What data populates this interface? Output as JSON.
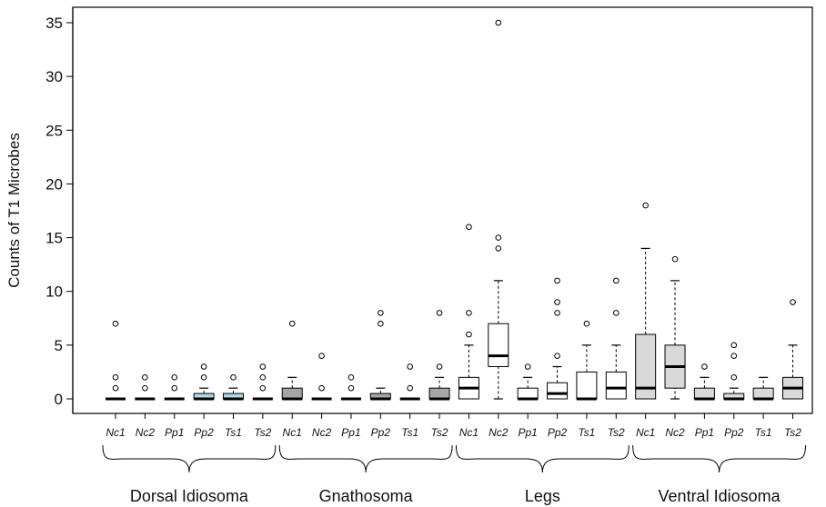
{
  "chart_data": {
    "type": "boxplot",
    "ylabel": "Counts of T1 Microbes",
    "ylim": [
      0,
      35
    ],
    "yticks": [
      0,
      5,
      10,
      15,
      20,
      25,
      30,
      35
    ],
    "ytick_labels": [
      "0",
      "5",
      "10",
      "15",
      "20",
      "25",
      "30",
      "35"
    ],
    "grid": false,
    "groups": [
      {
        "name": "Dorsal Idiosoma",
        "boxes": [
          {
            "label": "Nc1",
            "fill": "#d9d9d9",
            "whislo": 0,
            "q1": 0,
            "med": 0,
            "q3": 0,
            "whishi": 0,
            "fliers": [
              1,
              2,
              7
            ]
          },
          {
            "label": "Nc2",
            "fill": "#d9d9d9",
            "whislo": 0,
            "q1": 0,
            "med": 0,
            "q3": 0,
            "whishi": 0,
            "fliers": [
              1,
              2
            ]
          },
          {
            "label": "Pp1",
            "fill": "#d9d9d9",
            "whislo": 0,
            "q1": 0,
            "med": 0,
            "q3": 0,
            "whishi": 0,
            "fliers": [
              1,
              2
            ]
          },
          {
            "label": "Pp2",
            "fill": "#add8e6",
            "whislo": 0,
            "q1": 0,
            "med": 0,
            "q3": 0.5,
            "whishi": 1,
            "fliers": [
              2,
              3
            ]
          },
          {
            "label": "Ts1",
            "fill": "#add8e6",
            "whislo": 0,
            "q1": 0,
            "med": 0,
            "q3": 0.5,
            "whishi": 1,
            "fliers": [
              2
            ]
          },
          {
            "label": "Ts2",
            "fill": "#d9d9d9",
            "whislo": 0,
            "q1": 0,
            "med": 0,
            "q3": 0,
            "whishi": 0,
            "fliers": [
              1,
              2,
              3
            ]
          }
        ]
      },
      {
        "name": "Gnathosoma",
        "boxes": [
          {
            "label": "Nc1",
            "fill": "#a6a6a6",
            "whislo": 0,
            "q1": 0,
            "med": 0,
            "q3": 1,
            "whishi": 2,
            "fliers": [
              7
            ]
          },
          {
            "label": "Nc2",
            "fill": "#a6a6a6",
            "whislo": 0,
            "q1": 0,
            "med": 0,
            "q3": 0,
            "whishi": 0,
            "fliers": [
              1,
              4
            ]
          },
          {
            "label": "Pp1",
            "fill": "#a6a6a6",
            "whislo": 0,
            "q1": 0,
            "med": 0,
            "q3": 0,
            "whishi": 0,
            "fliers": [
              1,
              2
            ]
          },
          {
            "label": "Pp2",
            "fill": "#a6a6a6",
            "whislo": 0,
            "q1": 0,
            "med": 0,
            "q3": 0.5,
            "whishi": 1,
            "fliers": [
              7,
              8
            ]
          },
          {
            "label": "Ts1",
            "fill": "#a6a6a6",
            "whislo": 0,
            "q1": 0,
            "med": 0,
            "q3": 0,
            "whishi": 0,
            "fliers": [
              1,
              3
            ]
          },
          {
            "label": "Ts2",
            "fill": "#a6a6a6",
            "whislo": 0,
            "q1": 0,
            "med": 0,
            "q3": 1,
            "whishi": 2,
            "fliers": [
              3,
              8
            ]
          }
        ]
      },
      {
        "name": "Legs",
        "boxes": [
          {
            "label": "Nc1",
            "fill": "#ffffff",
            "whislo": 0,
            "q1": 0,
            "med": 1,
            "q3": 2,
            "whishi": 5,
            "fliers": [
              6,
              8,
              16
            ]
          },
          {
            "label": "Nc2",
            "fill": "#ffffff",
            "whislo": 0,
            "q1": 3,
            "med": 4,
            "q3": 7,
            "whishi": 11,
            "fliers": [
              14,
              15,
              35
            ]
          },
          {
            "label": "Pp1",
            "fill": "#ffffff",
            "whislo": 0,
            "q1": 0,
            "med": 0,
            "q3": 1,
            "whishi": 2,
            "fliers": [
              3
            ]
          },
          {
            "label": "Pp2",
            "fill": "#ffffff",
            "whislo": 0,
            "q1": 0,
            "med": 0.5,
            "q3": 1.5,
            "whishi": 3,
            "fliers": [
              4,
              8,
              9,
              11
            ]
          },
          {
            "label": "Ts1",
            "fill": "#ffffff",
            "whislo": 0,
            "q1": 0,
            "med": 0,
            "q3": 2.5,
            "whishi": 5,
            "fliers": [
              7
            ]
          },
          {
            "label": "Ts2",
            "fill": "#ffffff",
            "whislo": 0,
            "q1": 0,
            "med": 1,
            "q3": 2.5,
            "whishi": 5,
            "fliers": [
              8,
              11
            ]
          }
        ]
      },
      {
        "name": "Ventral Idiosoma",
        "boxes": [
          {
            "label": "Nc1",
            "fill": "#d9d9d9",
            "whislo": 0,
            "q1": 0,
            "med": 1,
            "q3": 6,
            "whishi": 14,
            "fliers": [
              18
            ]
          },
          {
            "label": "Nc2",
            "fill": "#d9d9d9",
            "whislo": 0,
            "q1": 1,
            "med": 3,
            "q3": 5,
            "whishi": 11,
            "fliers": [
              13
            ]
          },
          {
            "label": "Pp1",
            "fill": "#d9d9d9",
            "whislo": 0,
            "q1": 0,
            "med": 0,
            "q3": 1,
            "whishi": 2,
            "fliers": [
              3
            ]
          },
          {
            "label": "Pp2",
            "fill": "#d9d9d9",
            "whislo": 0,
            "q1": 0,
            "med": 0,
            "q3": 0.5,
            "whishi": 1,
            "fliers": [
              2,
              4,
              5
            ]
          },
          {
            "label": "Ts1",
            "fill": "#d9d9d9",
            "whislo": 0,
            "q1": 0,
            "med": 0,
            "q3": 1,
            "whishi": 2,
            "fliers": []
          },
          {
            "label": "Ts2",
            "fill": "#d9d9d9",
            "whislo": 0,
            "q1": 0,
            "med": 1,
            "q3": 2,
            "whishi": 5,
            "fliers": [
              9
            ]
          }
        ]
      }
    ]
  }
}
